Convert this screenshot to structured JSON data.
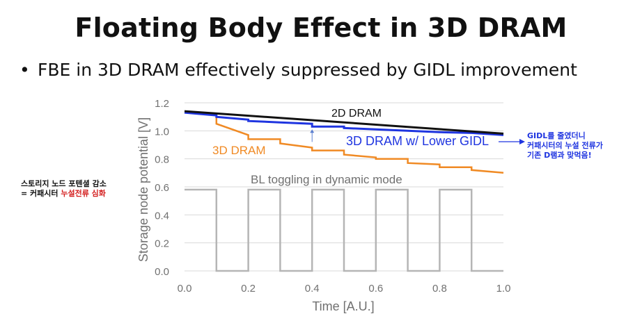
{
  "slide": {
    "title": "Floating Body Effect in 3D DRAM",
    "bullet_marker": "•",
    "bullet": "FBE in 3D DRAM effectively suppressed by GIDL improvement"
  },
  "annotations": {
    "left_line1": "스토리지 노드 포텐셜 감소",
    "left_line2_prefix": "= 커패시터 ",
    "left_line2_highlight": "누설전류 심화",
    "right_line1": "GIDL를 줄였더니",
    "right_line2": "커패시터의 누설 전류가",
    "right_line3": "기존 D램과 맞먹음!"
  },
  "colors": {
    "dram2d": "#111111",
    "dram3d": "#f08a24",
    "dram3d_lower_gidl": "#1f35e0",
    "bl_toggle": "#b5b5b5",
    "grid": "#d9d9d9",
    "axis_text": "#707070"
  },
  "chart_data": {
    "type": "line",
    "xlabel": "Time [A.U.]",
    "ylabel": "Storage node potential [V]",
    "xlim": [
      0,
      1.0
    ],
    "ylim": [
      0,
      1.2
    ],
    "xticks": [
      "0.0",
      "0.2",
      "0.4",
      "0.6",
      "0.8",
      "1.0"
    ],
    "yticks": [
      "0.0",
      "0.2",
      "0.4",
      "0.6",
      "0.8",
      "1.0",
      "1.2"
    ],
    "grid": true,
    "series": [
      {
        "name": "2D DRAM",
        "key": "dram2d",
        "x": [
          0,
          1.0
        ],
        "y": [
          1.14,
          0.98
        ]
      },
      {
        "name": "3D DRAM w/ Lower GIDL",
        "key": "dram3d_lower_gidl",
        "x": [
          0,
          0.1,
          0.1,
          0.2,
          0.2,
          0.3,
          0.4,
          0.4,
          0.5,
          0.5,
          0.6,
          0.7,
          0.8,
          0.9,
          1.0
        ],
        "y": [
          1.13,
          1.11,
          1.1,
          1.08,
          1.07,
          1.06,
          1.05,
          1.03,
          1.03,
          1.02,
          1.01,
          1.0,
          0.99,
          0.985,
          0.97
        ]
      },
      {
        "name": "3D DRAM",
        "key": "dram3d",
        "x": [
          0.1,
          0.1,
          0.2,
          0.2,
          0.3,
          0.3,
          0.4,
          0.4,
          0.5,
          0.5,
          0.6,
          0.6,
          0.7,
          0.7,
          0.8,
          0.8,
          0.9,
          0.9,
          1.0
        ],
        "y": [
          1.1,
          1.05,
          0.97,
          0.94,
          0.94,
          0.91,
          0.88,
          0.86,
          0.86,
          0.83,
          0.81,
          0.8,
          0.8,
          0.77,
          0.76,
          0.74,
          0.74,
          0.72,
          0.7
        ]
      },
      {
        "name": "BL toggling in dynamic mode",
        "key": "bl_toggle",
        "x": [
          0,
          0.1,
          0.1,
          0.2,
          0.2,
          0.3,
          0.3,
          0.4,
          0.4,
          0.5,
          0.5,
          0.6,
          0.6,
          0.7,
          0.7,
          0.8,
          0.8,
          0.9,
          0.9,
          1.0
        ],
        "y": [
          0.58,
          0.58,
          0,
          0,
          0.58,
          0.58,
          0,
          0,
          0.58,
          0.58,
          0,
          0,
          0.58,
          0.58,
          0,
          0,
          0.58,
          0.58,
          0,
          0
        ]
      }
    ],
    "annotation_arrow": {
      "x": 0.4,
      "y_from": 1.0,
      "y_to": 1.02
    }
  }
}
